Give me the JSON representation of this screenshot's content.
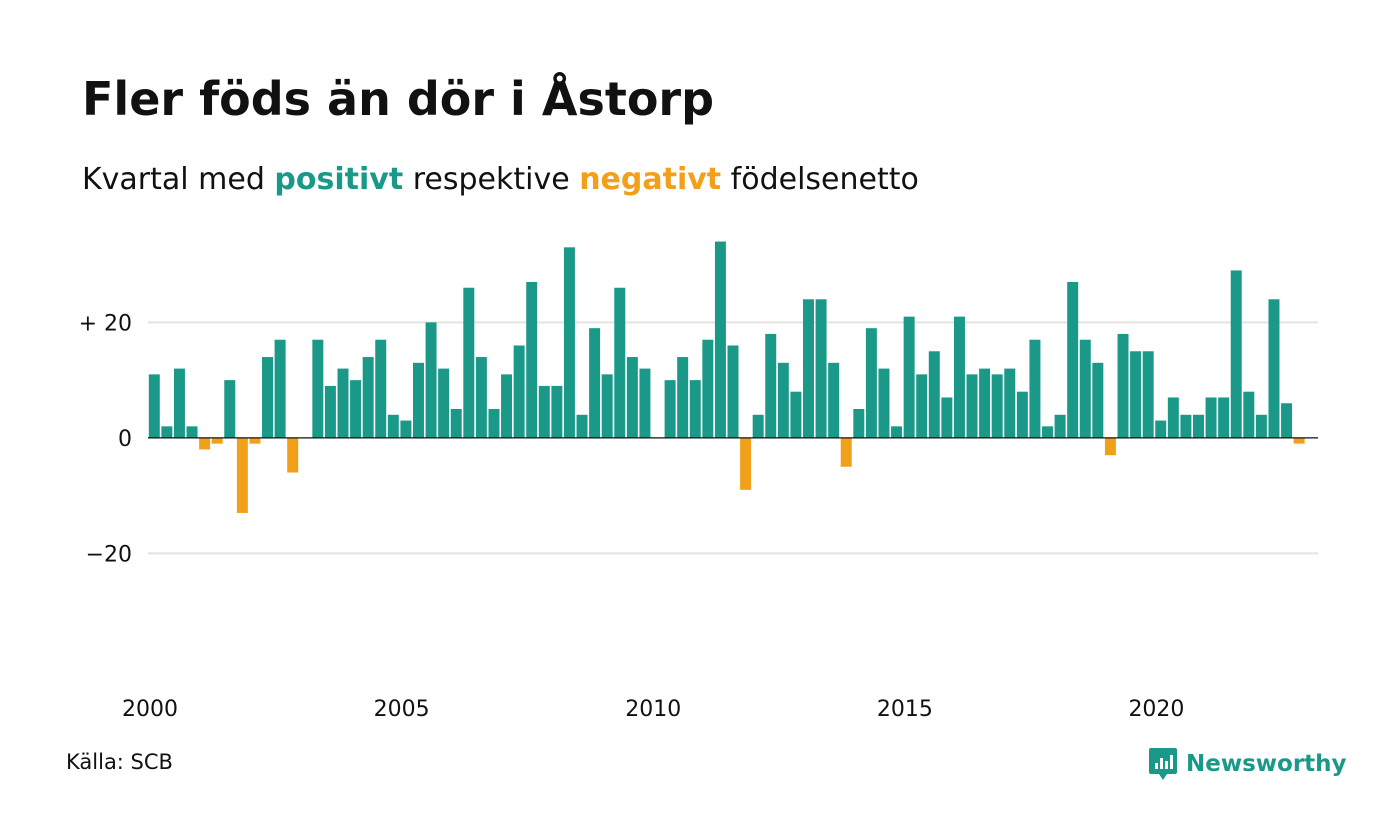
{
  "title": "Fler föds än dör i Åstorp",
  "subtitle": {
    "prefix": "Kvartal med ",
    "positive_word": "positivt",
    "middle": " respektive ",
    "negative_word": "negativt",
    "suffix": " födelsenetto"
  },
  "source": "Källa: SCB",
  "brand": "Newsworthy",
  "colors": {
    "positive": "#1a9988",
    "negative": "#f29f1a",
    "grid": "#e3e3e3",
    "baseline": "#111111"
  },
  "chart_data": {
    "type": "bar",
    "x_start": 2000.0,
    "x_step": 0.25,
    "values": [
      11,
      2,
      12,
      2,
      -2,
      -1,
      10,
      -13,
      -1,
      14,
      17,
      -6,
      0,
      17,
      9,
      12,
      10,
      14,
      17,
      4,
      3,
      13,
      20,
      12,
      5,
      26,
      14,
      5,
      11,
      16,
      27,
      9,
      9,
      33,
      4,
      19,
      11,
      26,
      14,
      12,
      0,
      10,
      14,
      10,
      17,
      34,
      16,
      -9,
      4,
      18,
      13,
      8,
      24,
      24,
      13,
      -5,
      5,
      19,
      12,
      2,
      21,
      11,
      15,
      7,
      21,
      11,
      12,
      11,
      12,
      8,
      17,
      2,
      4,
      27,
      17,
      13,
      -3,
      18,
      15,
      15,
      3,
      7,
      4,
      4,
      7,
      7,
      29,
      8,
      4,
      24,
      6,
      -1
    ],
    "xlim": [
      2000,
      2023.25
    ],
    "ylim": [
      -35,
      36
    ],
    "y_ticks": [
      {
        "value": 20,
        "label": "+ 20"
      },
      {
        "value": 0,
        "label": "0"
      },
      {
        "value": -20,
        "label": "−20"
      }
    ],
    "x_ticks": [
      {
        "value": 2000,
        "label": "2000"
      },
      {
        "value": 2005,
        "label": "2005"
      },
      {
        "value": 2010,
        "label": "2010"
      },
      {
        "value": 2015,
        "label": "2015"
      },
      {
        "value": 2020,
        "label": "2020"
      }
    ],
    "grid": true
  }
}
